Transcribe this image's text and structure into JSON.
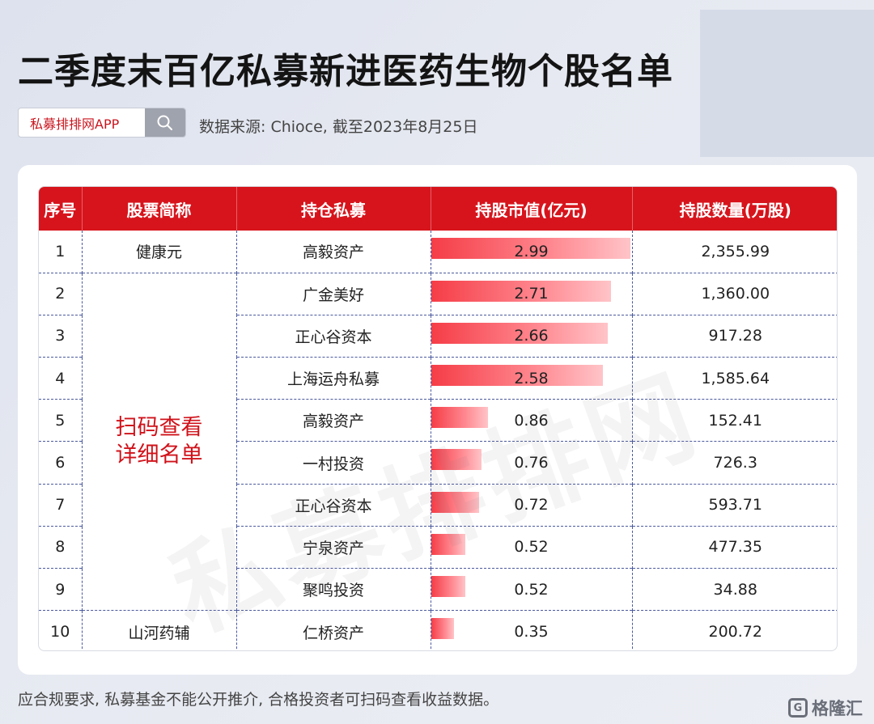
{
  "title": "二季度末百亿私募新进医药生物个股名单",
  "search": {
    "label": "私募排排网APP",
    "icon": "search-icon"
  },
  "source": "数据来源: Chioce, 截至2023年8月25日",
  "watermark": "私募排排网",
  "merged_label": [
    "扫码查看",
    "详细名单"
  ],
  "footnote": "应合规要求, 私募基金不能公开推介, 合格投资者可扫码查看收益数据。",
  "logo": {
    "mark": "G",
    "text": "格隆汇"
  },
  "colors": {
    "header_red": "#d7141c",
    "bar_start": "#f53d47",
    "bar_end": "#ffc4c8",
    "merged_text": "#d0121a"
  },
  "chart_data": {
    "type": "table",
    "columns": [
      "序号",
      "股票简称",
      "持仓私募",
      "持股市值(亿元)",
      "持股数量(万股)"
    ],
    "rows": [
      {
        "no": "1",
        "stock": "健康元",
        "fund": "高毅资产",
        "value": 2.99,
        "value_text": "2.99",
        "shares": "2,355.99"
      },
      {
        "no": "2",
        "stock": "",
        "fund": "广金美好",
        "value": 2.71,
        "value_text": "2.71",
        "shares": "1,360.00"
      },
      {
        "no": "3",
        "stock": "",
        "fund": "正心谷资本",
        "value": 2.66,
        "value_text": "2.66",
        "shares": "917.28"
      },
      {
        "no": "4",
        "stock": "",
        "fund": "上海运舟私募",
        "value": 2.58,
        "value_text": "2.58",
        "shares": "1,585.64"
      },
      {
        "no": "5",
        "stock": "",
        "fund": "高毅资产",
        "value": 0.86,
        "value_text": "0.86",
        "shares": "152.41"
      },
      {
        "no": "6",
        "stock": "",
        "fund": "一村投资",
        "value": 0.76,
        "value_text": "0.76",
        "shares": "726.3"
      },
      {
        "no": "7",
        "stock": "",
        "fund": "正心谷资本",
        "value": 0.72,
        "value_text": "0.72",
        "shares": "593.71"
      },
      {
        "no": "8",
        "stock": "",
        "fund": "宁泉资产",
        "value": 0.52,
        "value_text": "0.52",
        "shares": "477.35"
      },
      {
        "no": "9",
        "stock": "",
        "fund": "聚鸣投资",
        "value": 0.52,
        "value_text": "0.52",
        "shares": "34.88"
      },
      {
        "no": "10",
        "stock": "山河药辅",
        "fund": "仁桥资产",
        "value": 0.35,
        "value_text": "0.35",
        "shares": "200.72"
      }
    ],
    "bar_max": 2.99
  }
}
